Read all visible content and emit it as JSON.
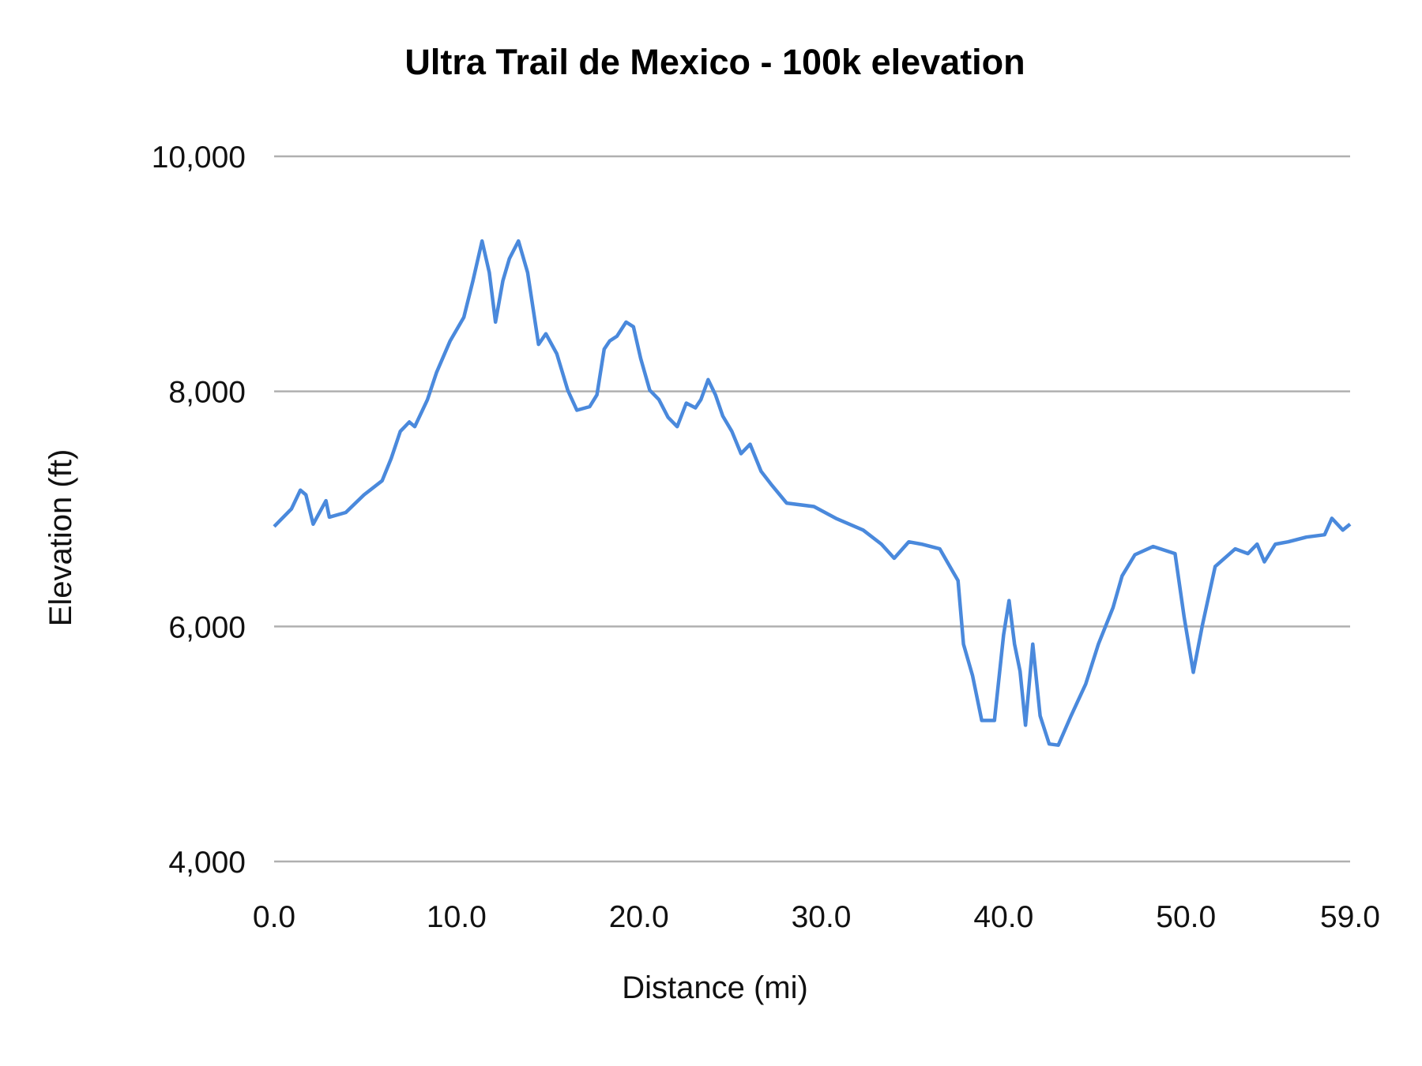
{
  "chart_data": {
    "type": "line",
    "title": "Ultra Trail de Mexico - 100k elevation",
    "xlabel": "Distance (mi)",
    "ylabel": "Elevation (ft)",
    "xlim": [
      0,
      59
    ],
    "ylim": [
      4000,
      10000
    ],
    "x_ticks": [
      "0.0",
      "10.0",
      "20.0",
      "30.0",
      "40.0",
      "50.0",
      "59.0"
    ],
    "x_tick_values": [
      0,
      10,
      20,
      30,
      40,
      50,
      59
    ],
    "y_ticks": [
      "4,000",
      "6,000",
      "8,000",
      "10,000"
    ],
    "y_tick_values": [
      4000,
      6000,
      8000,
      10000
    ],
    "grid": "horizontal",
    "legend": "none",
    "line_color": "#4a89dc",
    "series": [
      {
        "x": [
          0,
          0.95,
          1.44,
          1.74,
          2.14,
          2.84,
          3.03,
          3.93,
          4.93,
          5.92,
          6.42,
          6.92,
          7.41,
          7.71,
          8.41,
          8.9,
          9.65,
          10.4,
          10.9,
          11.4,
          11.8,
          12.14,
          12.54,
          12.9,
          13.4,
          13.9,
          14.5,
          14.9,
          15.5,
          16.1,
          16.6,
          17.3,
          17.7,
          18.1,
          18.4,
          18.8,
          19.3,
          19.7,
          20.1,
          20.6,
          21.1,
          21.6,
          22.1,
          22.6,
          23.1,
          23.4,
          23.8,
          24.2,
          24.6,
          25.1,
          25.6,
          26.1,
          26.7,
          27.3,
          28.1,
          29.6,
          30.8,
          32.3,
          33.3,
          34.0,
          34.8,
          35.5,
          36.5,
          37.2,
          37.5,
          37.8,
          38.3,
          38.8,
          39.5,
          40.0,
          40.3,
          40.6,
          40.9,
          41.2,
          41.6,
          42.0,
          42.5,
          43.0,
          43.7,
          44.5,
          45.2,
          46.0,
          46.5,
          47.2,
          48.2,
          49.4,
          49.9,
          50.4,
          50.9,
          51.6,
          52.7,
          53.4,
          53.9,
          54.3,
          54.9,
          55.6,
          56.6,
          57.6,
          58.0,
          58.6,
          59.0
        ],
        "y": [
          6850,
          7000,
          7160,
          7120,
          6870,
          7070,
          6930,
          6970,
          7120,
          7240,
          7430,
          7660,
          7740,
          7700,
          7930,
          8160,
          8430,
          8630,
          8940,
          9280,
          9010,
          8590,
          8940,
          9130,
          9280,
          9010,
          8400,
          8490,
          8320,
          8010,
          7840,
          7870,
          7970,
          8360,
          8430,
          8470,
          8590,
          8550,
          8280,
          8010,
          7930,
          7780,
          7700,
          7900,
          7860,
          7930,
          8100,
          7970,
          7790,
          7660,
          7470,
          7550,
          7320,
          7200,
          7050,
          7020,
          6920,
          6820,
          6700,
          6580,
          6720,
          6700,
          6660,
          6470,
          6390,
          5850,
          5580,
          5200,
          5200,
          5930,
          6220,
          5850,
          5620,
          5160,
          5850,
          5240,
          5000,
          4990,
          5240,
          5510,
          5850,
          6160,
          6430,
          6610,
          6680,
          6620,
          6080,
          5610,
          6010,
          6510,
          6660,
          6620,
          6700,
          6550,
          6700,
          6720,
          6760,
          6780,
          6920,
          6820,
          6870
        ]
      }
    ]
  }
}
